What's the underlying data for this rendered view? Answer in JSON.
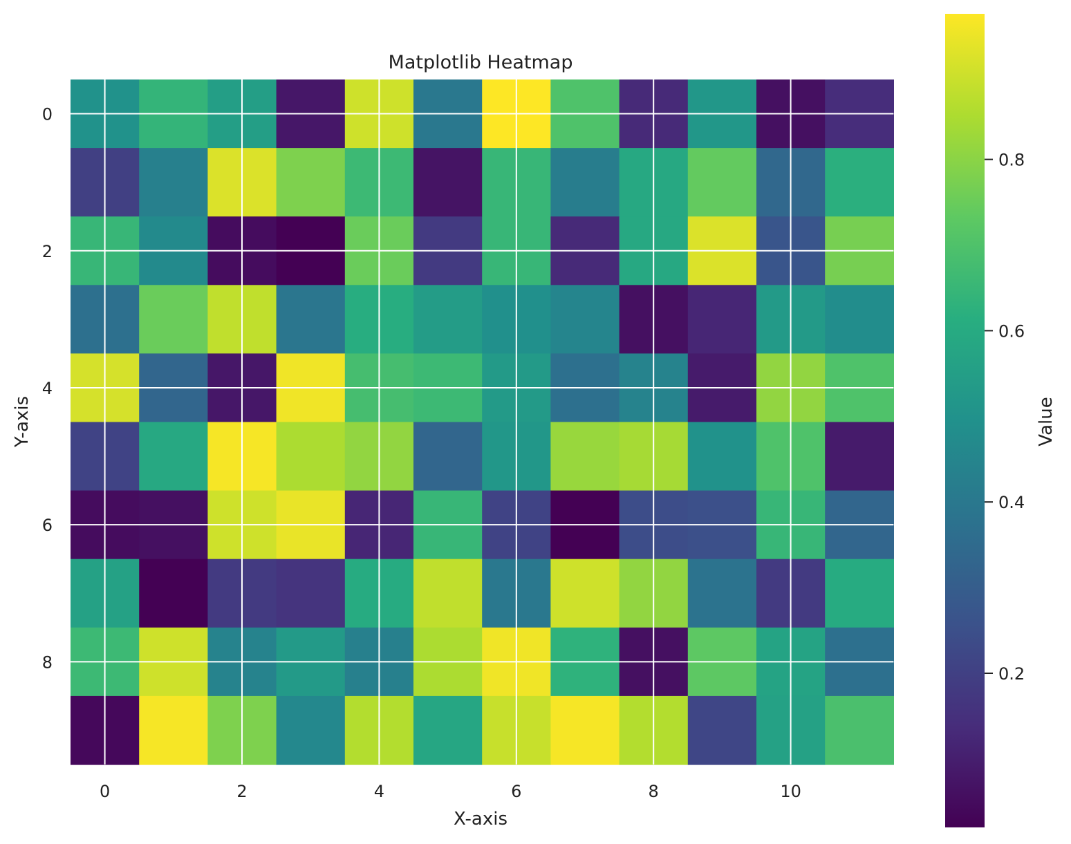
{
  "chart_data": {
    "type": "heatmap",
    "title": "Matplotlib Heatmap",
    "xlabel": "X-axis",
    "ylabel": "Y-axis",
    "colorbar_label": "Value",
    "colormap": "viridis",
    "x": [
      0,
      1,
      2,
      3,
      4,
      5,
      6,
      7,
      8,
      9,
      10,
      11
    ],
    "y": [
      0,
      1,
      2,
      3,
      4,
      5,
      6,
      7,
      8,
      9
    ],
    "xticks": [
      0,
      2,
      4,
      6,
      8,
      10
    ],
    "yticks": [
      0,
      2,
      4,
      6,
      8
    ],
    "colorbar_ticks": [
      0.2,
      0.4,
      0.6,
      0.8
    ],
    "colorbar_range": [
      0.02,
      0.97
    ],
    "grid": true,
    "values": [
      [
        0.5,
        0.64,
        0.55,
        0.08,
        0.9,
        0.4,
        0.97,
        0.7,
        0.13,
        0.52,
        0.06,
        0.14
      ],
      [
        0.2,
        0.43,
        0.92,
        0.78,
        0.66,
        0.07,
        0.65,
        0.42,
        0.59,
        0.74,
        0.34,
        0.62
      ],
      [
        0.65,
        0.47,
        0.05,
        0.02,
        0.75,
        0.18,
        0.65,
        0.13,
        0.59,
        0.92,
        0.27,
        0.77
      ],
      [
        0.37,
        0.75,
        0.88,
        0.39,
        0.61,
        0.54,
        0.49,
        0.45,
        0.06,
        0.12,
        0.53,
        0.48
      ],
      [
        0.91,
        0.33,
        0.08,
        0.95,
        0.68,
        0.66,
        0.53,
        0.37,
        0.44,
        0.09,
        0.81,
        0.7
      ],
      [
        0.21,
        0.59,
        0.96,
        0.85,
        0.81,
        0.33,
        0.52,
        0.82,
        0.84,
        0.5,
        0.7,
        0.09
      ],
      [
        0.05,
        0.06,
        0.9,
        0.94,
        0.12,
        0.65,
        0.21,
        0.02,
        0.24,
        0.25,
        0.65,
        0.33
      ],
      [
        0.56,
        0.02,
        0.18,
        0.16,
        0.6,
        0.88,
        0.4,
        0.9,
        0.81,
        0.38,
        0.18,
        0.6
      ],
      [
        0.66,
        0.9,
        0.44,
        0.53,
        0.43,
        0.85,
        0.95,
        0.63,
        0.06,
        0.73,
        0.57,
        0.37
      ],
      [
        0.04,
        0.96,
        0.78,
        0.46,
        0.86,
        0.58,
        0.89,
        0.96,
        0.86,
        0.22,
        0.56,
        0.69
      ]
    ]
  }
}
